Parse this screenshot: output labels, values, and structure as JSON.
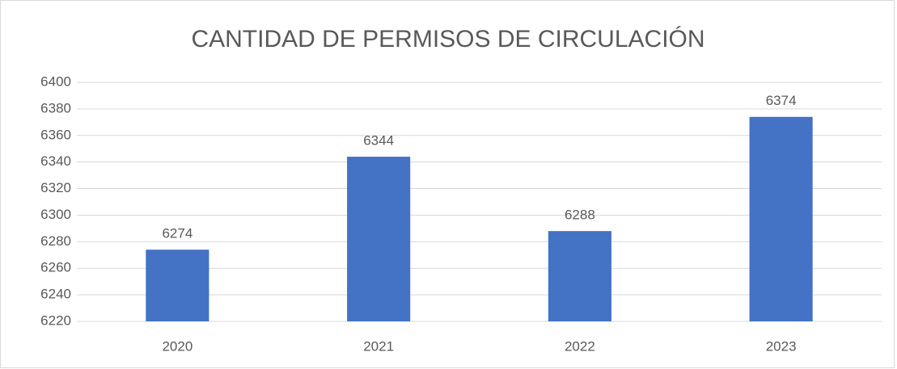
{
  "chart_data": {
    "type": "bar",
    "title": "CANTIDAD DE PERMISOS DE CIRCULACIÓN",
    "categories": [
      "2020",
      "2021",
      "2022",
      "2023"
    ],
    "values": [
      6274,
      6344,
      6288,
      6374
    ],
    "color": "#4472c4",
    "ylim": [
      6220,
      6400
    ],
    "yticks": [
      6220,
      6240,
      6260,
      6280,
      6300,
      6320,
      6340,
      6360,
      6380,
      6400
    ],
    "grid": true
  }
}
